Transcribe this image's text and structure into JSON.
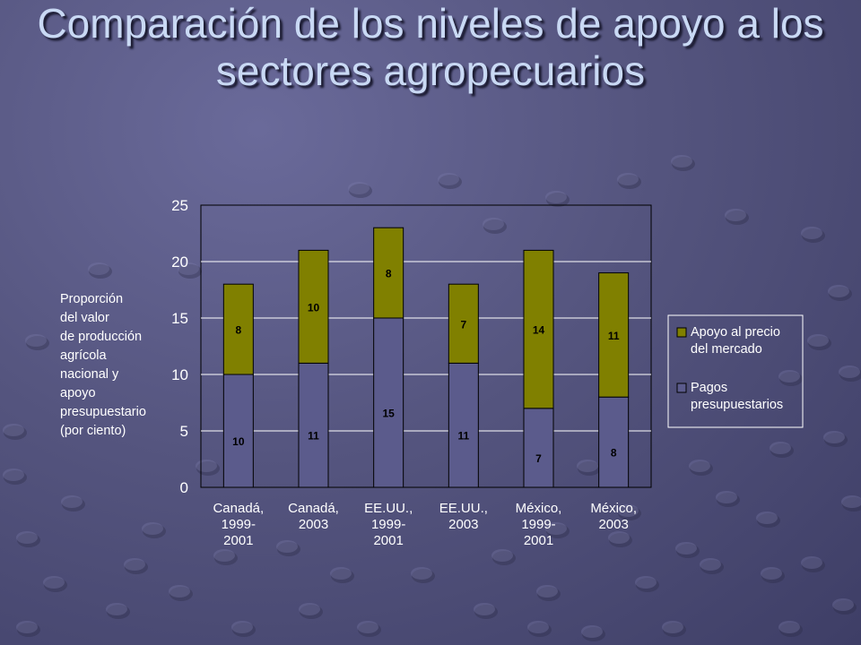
{
  "slide": {
    "title": "Comparación de los niveles de apoyo a los sectores agropecuarios"
  },
  "chart_data": {
    "type": "bar",
    "stacked": true,
    "categories": [
      [
        "Canadá,",
        "1999-",
        "2001"
      ],
      [
        "Canadá,",
        "2003"
      ],
      [
        "EE.UU.,",
        "1999-",
        "2001"
      ],
      [
        "EE.UU.,",
        "2003"
      ],
      [
        "México,",
        "1999-",
        "2001"
      ],
      [
        "México,",
        "2003"
      ]
    ],
    "series": [
      {
        "name": "Pagos presupuestarios",
        "legend_lines": [
          "Pagos",
          "presupuestarios"
        ],
        "color": "#5b5b8c",
        "values": [
          10,
          11,
          15,
          11,
          7,
          8
        ]
      },
      {
        "name": "Apoyo al precio del mercado",
        "legend_lines": [
          "Apoyo al precio",
          "del mercado"
        ],
        "color": "#808000",
        "values": [
          8,
          10,
          8,
          7,
          14,
          11
        ]
      }
    ],
    "ylabel_lines": [
      "Proporción",
      "del valor",
      "de producción",
      "agrícola",
      "nacional y",
      "apoyo",
      "presupuestario",
      "(por ciento)"
    ],
    "ylim": [
      0,
      25
    ],
    "yticks": [
      "0",
      "5",
      "10",
      "15",
      "20",
      "25"
    ],
    "grid": true,
    "legend_position": "right"
  }
}
